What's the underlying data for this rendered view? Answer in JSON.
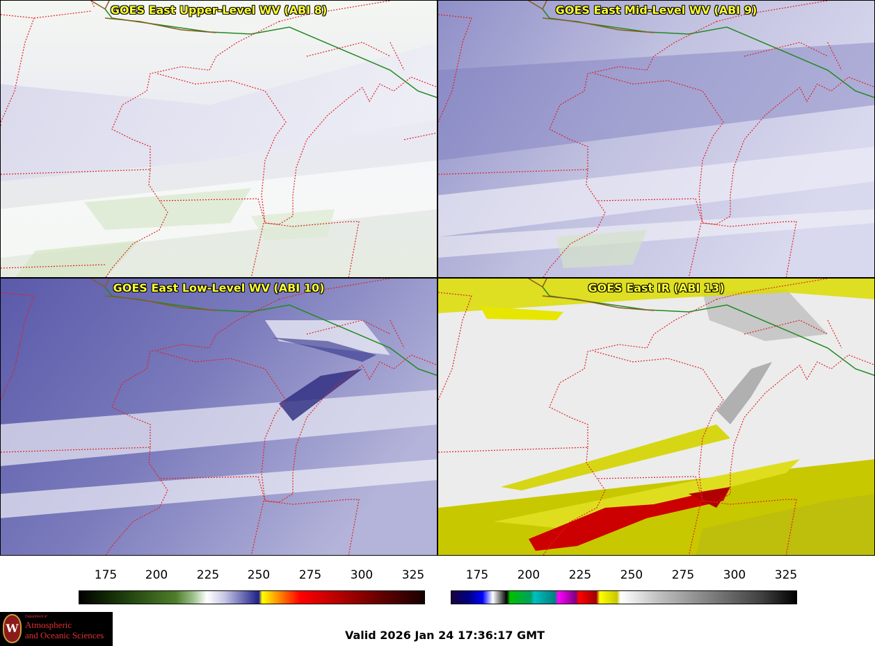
{
  "panels": [
    {
      "title": "GOES East Upper-Level WV (ABI 8)",
      "scheme": "upper"
    },
    {
      "title": "GOES East Mid-Level WV (ABI 9)",
      "scheme": "mid"
    },
    {
      "title": "GOES East Low-Level WV (ABI 10)",
      "scheme": "low"
    },
    {
      "title": "GOES East IR (ABI 13)",
      "scheme": "ir"
    }
  ],
  "colorbars": {
    "wv": {
      "ticks": [
        "175",
        "200",
        "225",
        "250",
        "275",
        "300",
        "325"
      ],
      "range": [
        165,
        330
      ],
      "stops": [
        [
          "#000000",
          0
        ],
        [
          "#1a3a0a",
          0.12
        ],
        [
          "#4e7d2a",
          0.28
        ],
        [
          "#9cc08a",
          0.33
        ],
        [
          "#ffffff",
          0.37
        ],
        [
          "#c8c8e6",
          0.42
        ],
        [
          "#20208a",
          0.5
        ],
        [
          "#ffff00",
          0.52
        ],
        [
          "#ff8800",
          0.58
        ],
        [
          "#ff0000",
          0.63
        ],
        [
          "#b00000",
          0.75
        ],
        [
          "#600000",
          0.88
        ],
        [
          "#180000",
          1
        ]
      ]
    },
    "ir": {
      "ticks": [
        "175",
        "200",
        "225",
        "250",
        "275",
        "300",
        "325"
      ],
      "range": [
        165,
        330
      ]
    }
  },
  "logo": {
    "dept": "Department of",
    "line1": "Atmospheric",
    "line2": "and Oceanic Sciences",
    "mark": "W"
  },
  "valid": "Valid 2026 Jan 24 17:36:17 GMT"
}
